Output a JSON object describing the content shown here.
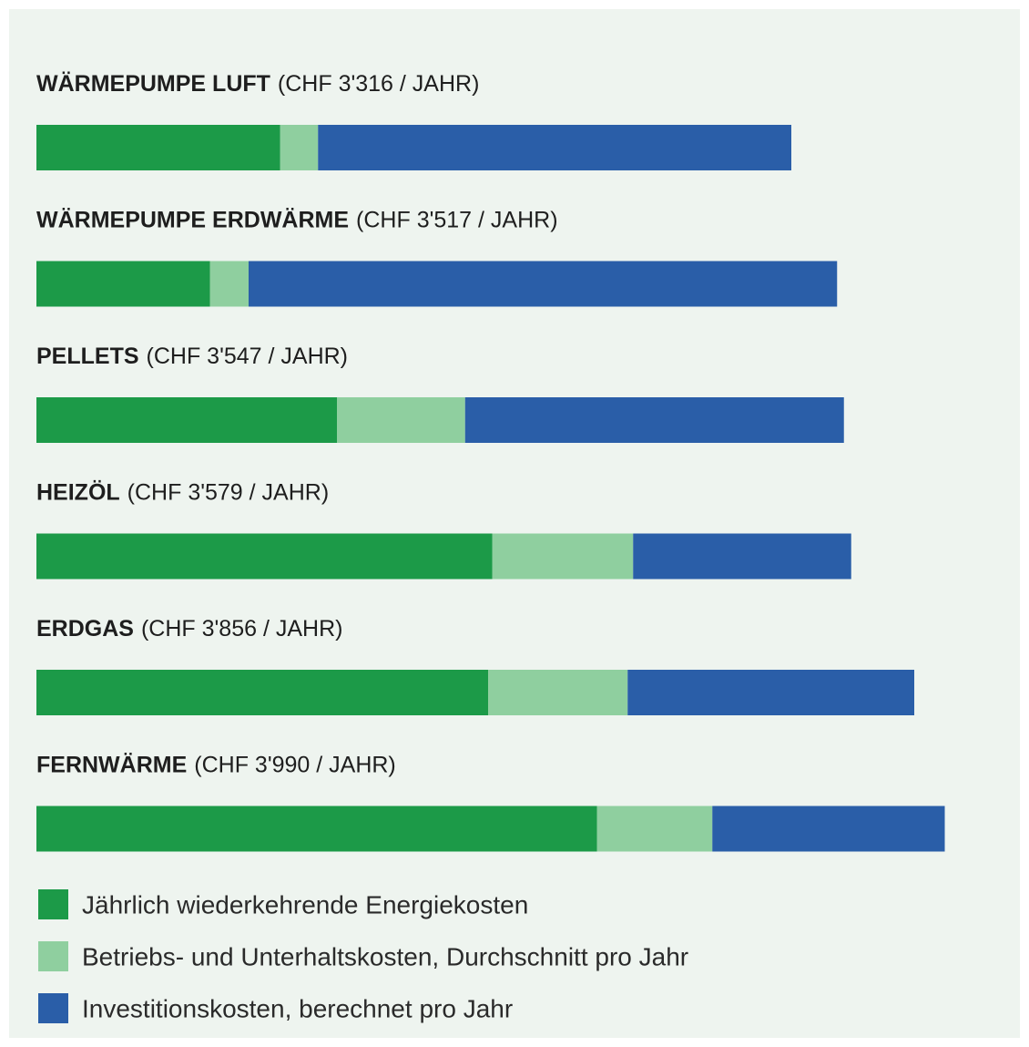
{
  "chart_data": {
    "type": "stacked-barh",
    "categories": [
      "WÄRMEPUMPE LUFT",
      "WÄRMEPUMPE ERDWÄRME",
      "PELLETS",
      "HEIZÖL",
      "ERDGAS",
      "FERNWÄRME"
    ],
    "category_notes": [
      "(CHF 3'316 / JAHR)",
      "(CHF 3'517 / JAHR)",
      "(CHF 3'547 / JAHR)",
      "(CHF 3'579 / JAHR)",
      "(CHF 3'856 / JAHR)",
      "(CHF 3'990 / JAHR)"
    ],
    "series": [
      {
        "name": "Jährlich wiederkehrende Energiekosten",
        "color": "#1c9a48",
        "values": [
          1070,
          762,
          1320,
          2002,
          1984,
          2462
        ]
      },
      {
        "name": "Betriebs- und Unterhaltskosten, Durchschnitt pro Jahr",
        "color": "#8fcf9f",
        "values": [
          167,
          170,
          563,
          619,
          613,
          507
        ]
      },
      {
        "name": "Investitionskosten, berechnet pro Jahr",
        "color": "#2a5ea8",
        "values": [
          2079,
          2585,
          1664,
          958,
          1259,
          1021
        ]
      }
    ],
    "xlim": [
      0,
      4000
    ]
  }
}
